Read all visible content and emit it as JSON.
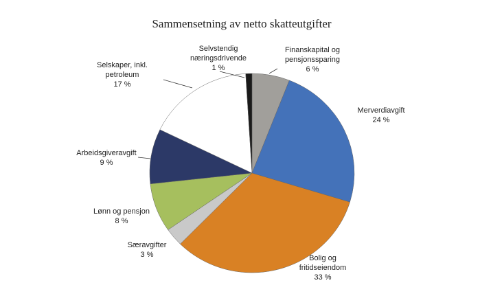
{
  "chart_data": {
    "type": "pie",
    "title": "Sammensetning av netto skatteutgifter",
    "categories": [
      [
        "Finanskapital og",
        "pensjonssparing"
      ],
      [
        "Merverdiavgift"
      ],
      [
        "Bolig og",
        "fritidseiendom"
      ],
      [
        "Særavgifter"
      ],
      [
        "Lønn og pensjon"
      ],
      [
        "Arbeidsgiveravgift"
      ],
      [
        "Selskaper, inkl.",
        "petroleum"
      ],
      [
        "Selvstendig",
        "næringsdrivende"
      ]
    ],
    "values": [
      6,
      24,
      33,
      3,
      8,
      9,
      17,
      1
    ],
    "value_labels": [
      "6 %",
      "24 %",
      "33 %",
      "3 %",
      "8 %",
      "9 %",
      "17 %",
      "1 %"
    ],
    "colors": [
      "#a19f9b",
      "#4472b9",
      "#d98124",
      "#c9c9c9",
      "#a6bf5e",
      "#2c3967",
      "#ffffff",
      "#1a1a1a"
    ]
  }
}
